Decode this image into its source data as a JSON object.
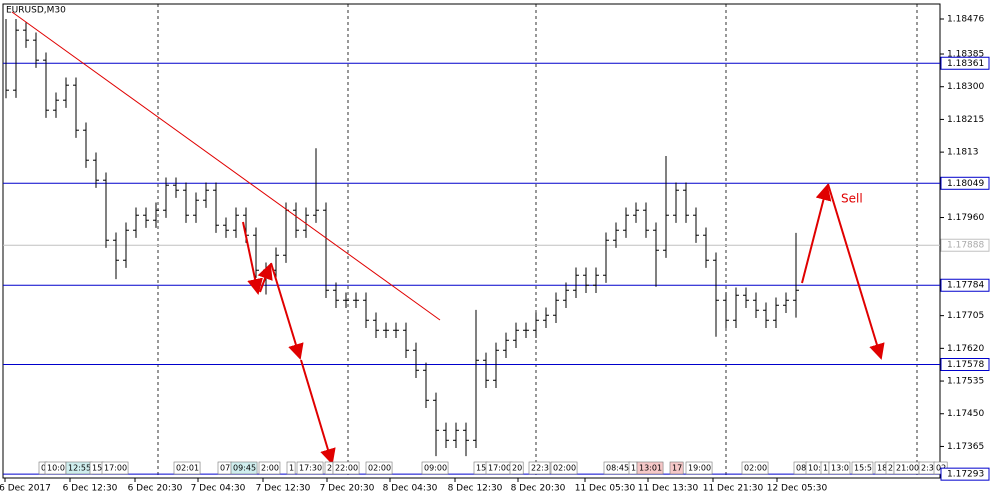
{
  "chart_data": {
    "type": "ohlc",
    "title": "EURUSD,M30",
    "bar_color": "#000000",
    "close": [
      1.18291,
      1.18447,
      1.18421,
      1.18369,
      1.18239,
      1.18265,
      1.18304,
      1.18187,
      1.18109,
      1.18057,
      1.17901,
      1.17849,
      1.17927,
      1.17966,
      1.17953,
      1.17979,
      1.18044,
      1.18031,
      1.17966,
      1.18005,
      1.18031,
      1.1794,
      1.17927,
      1.17966,
      1.17914,
      1.17823,
      1.17823,
      1.17862,
      1.17979,
      1.17927,
      1.17966,
      1.17979,
      1.17771,
      1.17745,
      1.17745,
      1.17745,
      1.17693,
      1.17667,
      1.17667,
      1.17667,
      1.17615,
      1.17563,
      1.17485,
      1.17407,
      1.17381,
      1.17407,
      1.17381,
      1.17589,
      1.17537,
      1.17615,
      1.17641,
      1.17667,
      1.17667,
      1.17693,
      1.17706,
      1.17745,
      1.17771,
      1.1781,
      1.17784,
      1.1781,
      1.17901,
      1.17927,
      1.17966,
      1.17979,
      1.17927,
      1.17875,
      1.17966,
      1.18031,
      1.17966,
      1.17914,
      1.17849,
      1.17745,
      1.17693,
      1.17758,
      1.17745,
      1.17719,
      1.17693,
      1.17732,
      1.17745,
      1.17771
    ],
    "high": [
      1.18476,
      1.18476,
      1.18467,
      1.18441,
      1.18389,
      1.18285,
      1.18324,
      1.18324,
      1.18207,
      1.18129,
      1.18077,
      1.17921,
      1.17947,
      1.17986,
      1.17986,
      1.17999,
      1.18064,
      1.18064,
      1.18051,
      1.18025,
      1.18051,
      1.18051,
      1.1796,
      1.17986,
      1.17986,
      1.17934,
      1.17843,
      1.17882,
      1.17999,
      1.17999,
      1.17986,
      1.1814,
      1.17999,
      1.17791,
      1.17765,
      1.17765,
      1.17765,
      1.17713,
      1.17687,
      1.17687,
      1.17687,
      1.17635,
      1.17583,
      1.17505,
      1.17427,
      1.17427,
      1.17427,
      1.1772,
      1.17609,
      1.17635,
      1.17661,
      1.17687,
      1.17687,
      1.17713,
      1.17726,
      1.17765,
      1.17791,
      1.1783,
      1.1783,
      1.1783,
      1.17921,
      1.17947,
      1.17986,
      1.17999,
      1.17999,
      1.17947,
      1.1812,
      1.18051,
      1.18051,
      1.17986,
      1.17934,
      1.17869,
      1.17765,
      1.17778,
      1.17778,
      1.17765,
      1.17739,
      1.17752,
      1.17765,
      1.1792
    ],
    "low": [
      1.1827,
      1.18271,
      1.18401,
      1.18349,
      1.18219,
      1.18219,
      1.18245,
      1.18167,
      1.18089,
      1.18037,
      1.17881,
      1.178,
      1.17829,
      1.17907,
      1.17933,
      1.17933,
      1.17959,
      1.18011,
      1.17946,
      1.17946,
      1.17985,
      1.1792,
      1.17907,
      1.17907,
      1.17894,
      1.17803,
      1.1776,
      1.17803,
      1.17842,
      1.17907,
      1.17907,
      1.17946,
      1.17751,
      1.17725,
      1.17725,
      1.17725,
      1.17673,
      1.17647,
      1.17647,
      1.17647,
      1.17595,
      1.17543,
      1.17465,
      1.1734,
      1.17361,
      1.17361,
      1.1734,
      1.17361,
      1.17517,
      1.17517,
      1.17595,
      1.17621,
      1.17647,
      1.17647,
      1.17673,
      1.17686,
      1.17725,
      1.17751,
      1.17764,
      1.17764,
      1.1779,
      1.17881,
      1.17907,
      1.17946,
      1.17907,
      1.1778,
      1.17855,
      1.17946,
      1.17946,
      1.17894,
      1.17829,
      1.1765,
      1.17673,
      1.17673,
      1.17725,
      1.17699,
      1.17673,
      1.17673,
      1.17712,
      1.177
    ],
    "xlim": [
      -0.3,
      93.4
    ],
    "ylim": [
      1.17283,
      1.18515
    ],
    "yticks": [
      1.18476,
      1.18385,
      {
        "value": 1.183,
        "label": "1.18300"
      },
      1.18215,
      1.1813,
      {
        "value": 1.1796,
        "label": "1.17960"
      },
      1.17705,
      {
        "value": 1.1762,
        "label": "1.17620"
      },
      1.17535,
      {
        "value": 1.1745,
        "label": "1.17450"
      },
      1.17365
    ],
    "xticks": [
      {
        "value": 1.9,
        "label": "6 Dec 2017"
      },
      {
        "value": 8.4,
        "label": "6 Dec 12:30"
      },
      {
        "value": 14.9,
        "label": "6 Dec 20:30"
      },
      {
        "value": 21.2,
        "label": "7 Dec 04:30"
      },
      {
        "value": 27.7,
        "label": "7 Dec 12:30"
      },
      {
        "value": 34.1,
        "label": "7 Dec 20:30"
      },
      {
        "value": 40.4,
        "label": "8 Dec 04:30"
      },
      {
        "value": 46.9,
        "label": "8 Dec 12:30"
      },
      {
        "value": 53.2,
        "label": "8 Dec 20:30"
      },
      {
        "value": 59.9,
        "label": "11 Dec 05:30"
      },
      {
        "value": 66.2,
        "label": "11 Dec 13:30"
      },
      {
        "value": 72.7,
        "label": "11 Dec 21:30"
      },
      {
        "value": 79.1,
        "label": "12 Dec 05:30"
      }
    ],
    "day_separators": [
      15.2,
      34.2,
      53,
      72,
      91.1
    ],
    "levels": [
      1.18361,
      1.18049,
      1.17784,
      1.17578,
      1.17293
    ],
    "level_color": "#0000cc",
    "bid": 1.17888,
    "bid_color": "#c0c0c0",
    "annotations": [
      "Sell"
    ],
    "event_tags": [
      "0",
      "10:0",
      "12:55",
      "15",
      "17:00",
      "02:01",
      "07",
      "09:45",
      "2:00",
      "1",
      "17:30",
      "2",
      "22:00",
      "02:00",
      "09:00",
      "15",
      "17:00",
      "20",
      "22:3",
      "02:00",
      "08:45",
      "1",
      "13:01",
      "17",
      "19:00",
      "02:00",
      "08",
      "10:",
      "1",
      "13:0",
      "15:5",
      "18",
      "2",
      "21:00",
      "2:3",
      "02"
    ]
  }
}
